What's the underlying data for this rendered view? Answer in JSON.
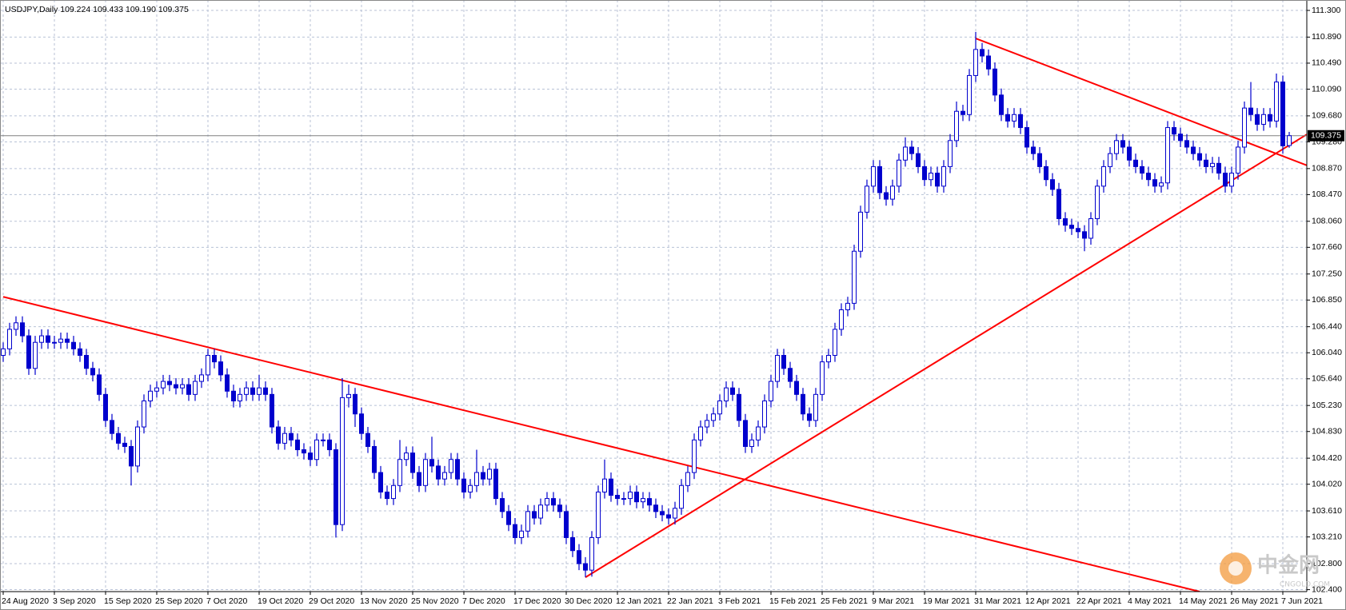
{
  "chart_data": {
    "type": "candlestick",
    "title": "USDJPY,Daily  109.224 109.433 109.190 109.375",
    "categories": [
      "24 Aug 2020",
      null,
      null,
      null,
      null,
      null,
      null,
      null,
      "3 Sep 2020",
      null,
      null,
      null,
      null,
      null,
      null,
      null,
      "15 Sep 2020",
      null,
      null,
      null,
      null,
      null,
      null,
      null,
      "25 Sep 2020",
      null,
      null,
      null,
      null,
      null,
      null,
      null,
      "7 Oct 2020",
      null,
      null,
      null,
      null,
      null,
      null,
      null,
      "19 Oct 2020",
      null,
      null,
      null,
      null,
      null,
      null,
      null,
      "29 Oct 2020",
      null,
      null,
      null,
      null,
      null,
      null,
      null,
      "13 Nov 2020",
      null,
      null,
      null,
      null,
      null,
      null,
      null,
      "25 Nov 2020",
      null,
      null,
      null,
      null,
      null,
      null,
      null,
      "7 Dec 2020",
      null,
      null,
      null,
      null,
      null,
      null,
      null,
      "17 Dec 2020",
      null,
      null,
      null,
      null,
      null,
      null,
      null,
      "30 Dec 2020",
      null,
      null,
      null,
      null,
      null,
      null,
      null,
      "12 Jan 2021",
      null,
      null,
      null,
      null,
      null,
      null,
      null,
      "22 Jan 2021",
      null,
      null,
      null,
      null,
      null,
      null,
      null,
      "3 Feb 2021",
      null,
      null,
      null,
      null,
      null,
      null,
      null,
      "15 Feb 2021",
      null,
      null,
      null,
      null,
      null,
      null,
      null,
      "25 Feb 2021",
      null,
      null,
      null,
      null,
      null,
      null,
      null,
      "9 Mar 2021",
      null,
      null,
      null,
      null,
      null,
      null,
      null,
      "19 Mar 2021",
      null,
      null,
      null,
      null,
      null,
      null,
      null,
      "31 Mar 2021",
      null,
      null,
      null,
      null,
      null,
      null,
      null,
      "12 Apr 2021",
      null,
      null,
      null,
      null,
      null,
      null,
      null,
      "22 Apr 2021",
      null,
      null,
      null,
      null,
      null,
      null,
      null,
      "4 May 2021",
      null,
      null,
      null,
      null,
      null,
      null,
      null,
      "14 May 2021",
      null,
      null,
      null,
      null,
      null,
      null,
      null,
      "26 May 2021",
      null,
      null,
      null,
      null,
      null,
      null,
      null,
      "7 Jun 2021",
      null
    ],
    "open": [
      106.0,
      106.1,
      106.4,
      106.5,
      106.3,
      105.8,
      106.2,
      106.3,
      106.2,
      106.2,
      106.25,
      106.2,
      106.1,
      106.0,
      105.8,
      105.7,
      105.4,
      105.0,
      104.8,
      104.65,
      104.6,
      104.3,
      104.9,
      105.3,
      105.45,
      105.5,
      105.6,
      105.55,
      105.5,
      105.55,
      105.4,
      105.6,
      105.7,
      106.0,
      105.9,
      105.7,
      105.45,
      105.3,
      105.4,
      105.5,
      105.4,
      105.5,
      105.4,
      104.9,
      104.65,
      104.8,
      104.7,
      104.55,
      104.5,
      104.4,
      104.7,
      104.7,
      104.55,
      103.4,
      105.35,
      105.4,
      105.1,
      104.8,
      104.6,
      104.2,
      103.9,
      103.8,
      104.0,
      104.4,
      104.5,
      104.2,
      104.0,
      104.4,
      104.3,
      104.1,
      104.2,
      104.4,
      104.1,
      103.9,
      104.0,
      104.2,
      104.1,
      104.25,
      103.8,
      103.6,
      103.4,
      103.2,
      103.3,
      103.6,
      103.5,
      103.7,
      103.8,
      103.7,
      103.6,
      103.2,
      103.0,
      102.8,
      102.7,
      103.2,
      103.9,
      104.1,
      103.85,
      103.8,
      103.8,
      103.9,
      103.75,
      103.8,
      103.7,
      103.6,
      103.55,
      103.5,
      103.65,
      104.0,
      104.2,
      104.7,
      104.9,
      105.0,
      105.1,
      105.3,
      105.5,
      105.4,
      105.0,
      104.6,
      104.7,
      104.9,
      105.3,
      105.6,
      106.0,
      105.8,
      105.6,
      105.4,
      105.1,
      105.0,
      105.4,
      105.9,
      106.0,
      106.4,
      106.7,
      106.8,
      107.6,
      108.2,
      108.6,
      108.9,
      108.5,
      108.4,
      108.6,
      109.0,
      109.2,
      109.1,
      108.9,
      108.7,
      108.8,
      108.6,
      108.9,
      109.3,
      109.75,
      109.7,
      110.3,
      110.7,
      110.6,
      110.4,
      110.0,
      109.7,
      109.6,
      109.7,
      109.5,
      109.2,
      109.1,
      108.9,
      108.7,
      108.55,
      108.1,
      108.0,
      107.95,
      107.9,
      107.8,
      108.1,
      108.6,
      108.9,
      109.1,
      109.3,
      109.2,
      109.0,
      108.9,
      108.8,
      108.7,
      108.6,
      108.65,
      109.5,
      109.4,
      109.3,
      109.2,
      109.1,
      109.0,
      108.9,
      108.95,
      108.8,
      108.6,
      108.8,
      109.2,
      109.8,
      109.7,
      109.55,
      109.7,
      109.6,
      110.2,
      109.224
    ],
    "high": [
      106.2,
      106.5,
      106.6,
      106.6,
      106.4,
      106.3,
      106.4,
      106.4,
      106.3,
      106.35,
      106.35,
      106.3,
      106.2,
      106.1,
      105.9,
      105.8,
      105.5,
      105.1,
      104.9,
      104.75,
      104.7,
      105.0,
      105.4,
      105.55,
      105.6,
      105.7,
      105.7,
      105.65,
      105.65,
      105.65,
      105.7,
      105.8,
      106.1,
      106.1,
      106.0,
      105.8,
      105.55,
      105.5,
      105.6,
      105.6,
      105.7,
      105.6,
      105.5,
      105.0,
      104.9,
      104.9,
      104.8,
      104.65,
      104.6,
      104.8,
      104.8,
      104.8,
      104.65,
      105.65,
      105.55,
      105.5,
      105.2,
      104.9,
      104.7,
      104.3,
      104.0,
      104.1,
      104.7,
      104.6,
      104.6,
      104.3,
      104.5,
      104.75,
      104.4,
      104.3,
      104.5,
      104.5,
      104.2,
      104.1,
      104.55,
      104.3,
      104.35,
      104.35,
      103.9,
      103.7,
      103.5,
      103.4,
      103.7,
      103.7,
      103.8,
      103.9,
      103.9,
      103.8,
      103.7,
      103.3,
      103.1,
      102.9,
      103.3,
      104.0,
      104.4,
      104.2,
      103.95,
      103.9,
      104.0,
      104.0,
      103.9,
      103.9,
      103.8,
      103.7,
      103.65,
      103.75,
      104.1,
      104.3,
      104.8,
      105.0,
      105.1,
      105.2,
      105.4,
      105.6,
      105.6,
      105.5,
      105.1,
      104.8,
      105.0,
      105.4,
      105.7,
      106.1,
      106.1,
      105.9,
      105.7,
      105.5,
      105.2,
      105.5,
      106.0,
      106.1,
      106.5,
      106.8,
      106.9,
      107.7,
      108.3,
      108.7,
      109.0,
      109.0,
      108.6,
      108.7,
      109.1,
      109.35,
      109.3,
      109.2,
      109.0,
      108.9,
      108.9,
      109.0,
      109.4,
      109.9,
      109.85,
      110.4,
      110.97,
      110.8,
      110.7,
      110.5,
      110.1,
      109.8,
      109.8,
      109.8,
      109.6,
      109.3,
      109.2,
      109.0,
      108.8,
      108.65,
      108.2,
      108.1,
      108.05,
      108.0,
      108.2,
      108.7,
      109.0,
      109.2,
      109.4,
      109.4,
      109.3,
      109.1,
      109.0,
      108.9,
      108.8,
      108.75,
      109.6,
      109.6,
      109.5,
      109.4,
      109.3,
      109.2,
      109.1,
      109.05,
      109.05,
      108.9,
      108.9,
      109.3,
      109.9,
      110.2,
      109.8,
      109.8,
      109.8,
      110.33,
      110.3,
      109.433
    ],
    "low": [
      105.9,
      106.0,
      106.3,
      106.2,
      105.7,
      105.7,
      106.1,
      106.1,
      106.1,
      106.1,
      106.1,
      106.0,
      105.9,
      105.7,
      105.6,
      105.3,
      104.9,
      104.7,
      104.55,
      104.5,
      104.0,
      104.2,
      104.8,
      105.2,
      105.35,
      105.4,
      105.45,
      105.4,
      105.4,
      105.3,
      105.3,
      105.5,
      105.6,
      105.8,
      105.6,
      105.35,
      105.2,
      105.2,
      105.3,
      105.3,
      105.3,
      105.3,
      104.8,
      104.55,
      104.55,
      104.6,
      104.45,
      104.4,
      104.3,
      104.3,
      104.6,
      104.45,
      103.2,
      103.3,
      105.2,
      104.9,
      104.7,
      104.5,
      104.1,
      103.8,
      103.7,
      103.7,
      103.9,
      104.3,
      104.1,
      103.9,
      103.9,
      104.2,
      104.0,
      104.0,
      104.1,
      104.0,
      103.8,
      103.8,
      103.9,
      104.0,
      104.0,
      103.7,
      103.5,
      103.3,
      103.1,
      103.1,
      103.2,
      103.4,
      103.4,
      103.6,
      103.6,
      103.5,
      103.1,
      102.9,
      102.7,
      102.59,
      102.6,
      103.1,
      103.8,
      103.75,
      103.7,
      103.7,
      103.7,
      103.65,
      103.65,
      103.6,
      103.5,
      103.45,
      103.4,
      103.4,
      103.55,
      103.9,
      104.1,
      104.6,
      104.8,
      104.9,
      105.0,
      105.2,
      105.3,
      104.9,
      104.5,
      104.5,
      104.6,
      104.8,
      105.2,
      105.5,
      105.7,
      105.5,
      105.3,
      105.0,
      104.9,
      104.9,
      105.3,
      105.8,
      105.9,
      106.3,
      106.6,
      106.7,
      107.5,
      108.1,
      108.5,
      108.4,
      108.3,
      108.3,
      108.5,
      108.9,
      109.0,
      108.8,
      108.6,
      108.6,
      108.5,
      108.5,
      108.8,
      109.2,
      109.6,
      109.6,
      110.2,
      110.5,
      110.3,
      109.9,
      109.6,
      109.5,
      109.5,
      109.4,
      109.1,
      109.0,
      108.8,
      108.6,
      108.45,
      108.0,
      107.9,
      107.85,
      107.8,
      107.6,
      107.7,
      108.0,
      108.5,
      108.8,
      109.0,
      109.1,
      108.9,
      108.8,
      108.7,
      108.6,
      108.5,
      108.5,
      108.55,
      109.3,
      109.2,
      109.1,
      109.0,
      108.9,
      108.8,
      108.8,
      108.7,
      108.5,
      108.5,
      108.7,
      109.1,
      109.6,
      109.45,
      109.45,
      109.5,
      109.5,
      109.1,
      109.19
    ],
    "close": [
      106.1,
      106.4,
      106.5,
      106.3,
      105.8,
      106.2,
      106.3,
      106.2,
      106.2,
      106.25,
      106.2,
      106.1,
      106.0,
      105.8,
      105.7,
      105.4,
      105.0,
      104.8,
      104.65,
      104.6,
      104.3,
      104.9,
      105.3,
      105.45,
      105.5,
      105.6,
      105.55,
      105.5,
      105.55,
      105.4,
      105.6,
      105.7,
      106.0,
      105.9,
      105.7,
      105.45,
      105.3,
      105.4,
      105.5,
      105.4,
      105.5,
      105.4,
      104.9,
      104.65,
      104.8,
      104.7,
      104.55,
      104.5,
      104.4,
      104.7,
      104.7,
      104.55,
      103.4,
      105.35,
      105.4,
      105.1,
      104.8,
      104.6,
      104.2,
      103.9,
      103.8,
      104.0,
      104.4,
      104.5,
      104.2,
      104.0,
      104.4,
      104.3,
      104.1,
      104.2,
      104.4,
      104.1,
      103.9,
      104.0,
      104.2,
      104.1,
      104.25,
      103.8,
      103.6,
      103.4,
      103.2,
      103.3,
      103.6,
      103.5,
      103.7,
      103.8,
      103.7,
      103.6,
      103.2,
      103.0,
      102.8,
      102.7,
      103.2,
      103.9,
      104.1,
      103.85,
      103.8,
      103.8,
      103.9,
      103.75,
      103.8,
      103.7,
      103.6,
      103.55,
      103.5,
      103.65,
      104.0,
      104.2,
      104.7,
      104.9,
      105.0,
      105.1,
      105.3,
      105.5,
      105.4,
      105.0,
      104.6,
      104.7,
      104.9,
      105.3,
      105.6,
      106.0,
      105.8,
      105.6,
      105.4,
      105.1,
      105.0,
      105.4,
      105.9,
      106.0,
      106.4,
      106.7,
      106.8,
      107.6,
      108.2,
      108.6,
      108.9,
      108.5,
      108.4,
      108.6,
      109.0,
      109.2,
      109.1,
      108.9,
      108.7,
      108.8,
      108.6,
      108.9,
      109.3,
      109.75,
      109.7,
      110.3,
      110.7,
      110.6,
      110.4,
      110.0,
      109.7,
      109.6,
      109.7,
      109.5,
      109.2,
      109.1,
      108.9,
      108.7,
      108.55,
      108.1,
      108.0,
      107.95,
      107.9,
      107.8,
      108.1,
      108.6,
      108.9,
      109.1,
      109.3,
      109.2,
      109.0,
      108.9,
      108.8,
      108.7,
      108.6,
      108.65,
      109.5,
      109.4,
      109.3,
      109.2,
      109.1,
      109.0,
      108.9,
      108.95,
      108.8,
      108.6,
      108.8,
      109.2,
      109.8,
      109.7,
      109.55,
      109.7,
      109.6,
      110.2,
      109.22,
      109.375
    ],
    "color": "#0000cd",
    "last_price_color": "#808080",
    "grid": true,
    "grid_color": "#b8c2d6",
    "ylim": [
      102.37,
      111.46
    ],
    "yticks": [
      {
        "value": 111.3,
        "label": "111.300"
      },
      {
        "value": 110.89,
        "label": "110.890"
      },
      {
        "value": 110.49,
        "label": "110.490"
      },
      {
        "value": 110.09,
        "label": "110.090"
      },
      {
        "value": 109.68,
        "label": "109.680"
      },
      {
        "value": 109.28,
        "label": "109.280"
      },
      {
        "value": 108.87,
        "label": "108.870"
      },
      {
        "value": 108.47,
        "label": "108.470"
      },
      {
        "value": 108.06,
        "label": "108.060"
      },
      {
        "value": 107.66,
        "label": "107.660"
      },
      {
        "value": 107.25,
        "label": "107.250"
      },
      {
        "value": 106.85,
        "label": "106.850"
      },
      {
        "value": 106.44,
        "label": "106.440"
      },
      {
        "value": 106.04,
        "label": "106.040"
      },
      {
        "value": 105.64,
        "label": "105.640"
      },
      {
        "value": 105.23,
        "label": "105.230"
      },
      {
        "value": 104.83,
        "label": "104.830"
      },
      {
        "value": 104.42,
        "label": "104.420"
      },
      {
        "value": 104.02,
        "label": "104.020"
      },
      {
        "value": 103.61,
        "label": "103.610"
      },
      {
        "value": 103.21,
        "label": "103.210"
      },
      {
        "value": 102.8,
        "label": "102.800"
      },
      {
        "value": 102.4,
        "label": "102.400"
      }
    ],
    "trendlines": [
      {
        "color": "#ff0000",
        "x": [
          0,
          187
        ],
        "y": [
          106.9,
          102.37
        ]
      },
      {
        "color": "#ff0000",
        "x": [
          91,
          204
        ],
        "y": [
          102.59,
          109.41
        ]
      },
      {
        "color": "#ff0000",
        "x": [
          152,
          204
        ],
        "y": [
          110.87,
          108.91
        ]
      }
    ],
    "watermark": {
      "title": "中金网",
      "subtitle": "CNGOLD.COM"
    }
  }
}
